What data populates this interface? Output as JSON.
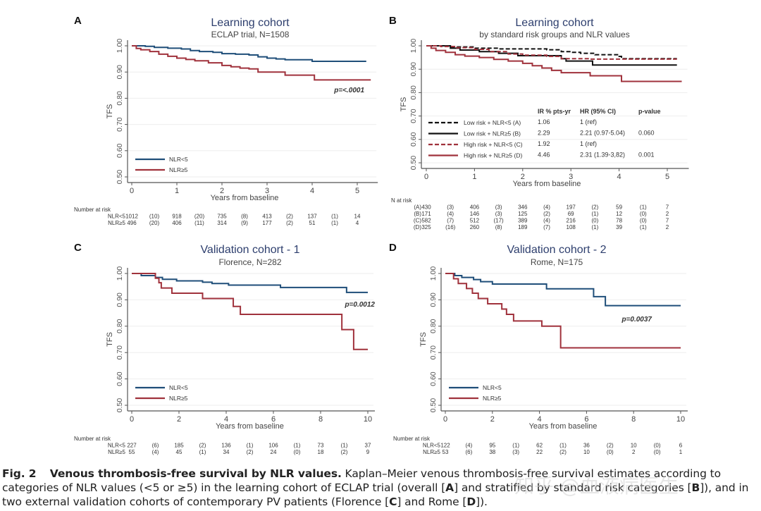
{
  "caption": {
    "fig_label": "Fig. 2",
    "bold_title": "Venous thrombosis-free survival by NLR values.",
    "text_1": " Kaplan–Meier venous thrombosis-free survival estimates according to categories of NLR values (<5 or ≥5) in the learning cohort of ECLAP trial (overall [",
    "ref_a": "A",
    "text_2": "] and stratified by standard risk categories [",
    "ref_b": "B",
    "text_3": "]), and in two external validation cohorts of contemporary PV patients (Florence [",
    "ref_c": "C",
    "text_4": "] and Rome [",
    "ref_d": "D",
    "text_5": "])."
  },
  "watermark": "知乎 @血液病医生",
  "colors": {
    "blue": "#1f4e79",
    "red": "#a0323c",
    "black": "#111111",
    "title": "#2e3f6e",
    "axis": "#555555",
    "grid": "#eeeeee"
  },
  "chart_data": [
    {
      "panel": "A",
      "type": "line",
      "title": "Learning cohort",
      "subtitle": "ECLAP trial, N=1508",
      "xlabel": "Years from baseline",
      "ylabel": "TFS",
      "xlim": [
        0,
        5.3
      ],
      "ylim": [
        0.5,
        1.0
      ],
      "xticks": [
        0,
        1,
        2,
        3,
        4,
        5
      ],
      "yticks": [
        "0.50",
        "0.60",
        "0.70",
        "0.80",
        "0.90",
        "1.00"
      ],
      "grid": true,
      "legend_position": "bottom-left",
      "annotation": "p=<.0001",
      "series": [
        {
          "name": "NLR<5",
          "color": "blue",
          "dash": false,
          "steps": [
            [
              0,
              1.0
            ],
            [
              0.3,
              0.998
            ],
            [
              0.5,
              0.994
            ],
            [
              0.8,
              0.991
            ],
            [
              1.1,
              0.988
            ],
            [
              1.3,
              0.982
            ],
            [
              1.5,
              0.978
            ],
            [
              1.8,
              0.975
            ],
            [
              2.0,
              0.97
            ],
            [
              2.3,
              0.968
            ],
            [
              2.6,
              0.965
            ],
            [
              2.8,
              0.958
            ],
            [
              3.0,
              0.953
            ],
            [
              3.2,
              0.95
            ],
            [
              3.4,
              0.947
            ],
            [
              4.0,
              0.941
            ],
            [
              5.2,
              0.941
            ]
          ]
        },
        {
          "name": "NLR≥5",
          "color": "red",
          "dash": false,
          "steps": [
            [
              0,
              1.0
            ],
            [
              0.1,
              0.99
            ],
            [
              0.2,
              0.985
            ],
            [
              0.4,
              0.978
            ],
            [
              0.6,
              0.968
            ],
            [
              0.8,
              0.96
            ],
            [
              1.0,
              0.953
            ],
            [
              1.2,
              0.948
            ],
            [
              1.4,
              0.943
            ],
            [
              1.7,
              0.935
            ],
            [
              2.0,
              0.925
            ],
            [
              2.2,
              0.92
            ],
            [
              2.4,
              0.915
            ],
            [
              2.6,
              0.912
            ],
            [
              2.8,
              0.9
            ],
            [
              3.4,
              0.888
            ],
            [
              4.05,
              0.87
            ],
            [
              5.3,
              0.87
            ]
          ]
        }
      ],
      "risk_table": {
        "header": "Number at risk",
        "rows": [
          {
            "label": "NLR<5",
            "values": [
              "1012",
              "(10)",
              "918",
              "(20)",
              "735",
              "(8)",
              "413",
              "(2)",
              "137",
              "(1)",
              "14"
            ]
          },
          {
            "label": "NLR≥5",
            "values": [
              "496",
              "(20)",
              "406",
              "(11)",
              "314",
              "(9)",
              "177",
              "(2)",
              "51",
              "(1)",
              "4"
            ]
          }
        ]
      }
    },
    {
      "panel": "B",
      "type": "line",
      "title": "Learning cohort",
      "subtitle": "by standard risk groups and NLR values",
      "xlabel": "Years from baseline",
      "ylabel": "TFS",
      "xlim": [
        0,
        5.3
      ],
      "ylim": [
        0.5,
        1.0
      ],
      "xticks": [
        0,
        1,
        2,
        3,
        4,
        5
      ],
      "yticks": [
        "0.50",
        "0.60",
        "0.70",
        "0.80",
        "0.90",
        "1.00"
      ],
      "grid": true,
      "legend_position": "bottom-left",
      "legend_table": {
        "headers": [
          "IR % pts-yr",
          "HR (95% CI)",
          "p-value"
        ],
        "rows": [
          {
            "label": "Low risk + NLR<5 (A)",
            "ir": "1.06",
            "hr": "1 (ref)",
            "p": ""
          },
          {
            "label": "Low risk + NLR≥5 (B)",
            "ir": "2.29",
            "hr": "2.21 (0.97-5.04)",
            "p": "0.060"
          },
          {
            "label": "High risk + NLR<5 (C)",
            "ir": "1.92",
            "hr": "1 (ref)",
            "p": ""
          },
          {
            "label": "High risk + NLR≥5 (D)",
            "ir": "4.46",
            "hr": "2.31 (1.39-3,82)",
            "p": "0.001"
          }
        ]
      },
      "series": [
        {
          "name": "Low risk + NLR<5 (A)",
          "color": "black",
          "dash": true,
          "steps": [
            [
              0,
              1.0
            ],
            [
              0.5,
              0.995
            ],
            [
              1.0,
              0.99
            ],
            [
              1.5,
              0.987
            ],
            [
              2.5,
              0.983
            ],
            [
              2.8,
              0.975
            ],
            [
              3.0,
              0.972
            ],
            [
              3.2,
              0.968
            ],
            [
              3.5,
              0.962
            ],
            [
              4.0,
              0.955
            ],
            [
              4.05,
              0.945
            ],
            [
              5.2,
              0.945
            ]
          ]
        },
        {
          "name": "Low risk + NLR≥5 (B)",
          "color": "black",
          "dash": false,
          "steps": [
            [
              0,
              1.0
            ],
            [
              0.5,
              0.99
            ],
            [
              0.7,
              0.982
            ],
            [
              1.1,
              0.975
            ],
            [
              1.5,
              0.968
            ],
            [
              1.9,
              0.958
            ],
            [
              2.8,
              0.945
            ],
            [
              2.9,
              0.935
            ],
            [
              3.45,
              0.918
            ],
            [
              5.2,
              0.918
            ]
          ]
        },
        {
          "name": "High risk + NLR<5 (C)",
          "color": "red",
          "dash": true,
          "steps": [
            [
              0,
              1.0
            ],
            [
              0.3,
              0.997
            ],
            [
              0.6,
              0.992
            ],
            [
              1.0,
              0.985
            ],
            [
              1.3,
              0.975
            ],
            [
              1.7,
              0.965
            ],
            [
              2.0,
              0.96
            ],
            [
              2.5,
              0.955
            ],
            [
              2.8,
              0.945
            ],
            [
              3.4,
              0.943
            ],
            [
              5.2,
              0.943
            ]
          ]
        },
        {
          "name": "High risk + NLR≥5 (D)",
          "color": "red",
          "dash": false,
          "steps": [
            [
              0,
              1.0
            ],
            [
              0.1,
              0.99
            ],
            [
              0.2,
              0.98
            ],
            [
              0.4,
              0.972
            ],
            [
              0.6,
              0.962
            ],
            [
              0.8,
              0.956
            ],
            [
              1.1,
              0.95
            ],
            [
              1.4,
              0.942
            ],
            [
              1.7,
              0.935
            ],
            [
              2.0,
              0.925
            ],
            [
              2.2,
              0.915
            ],
            [
              2.4,
              0.905
            ],
            [
              2.6,
              0.895
            ],
            [
              2.8,
              0.885
            ],
            [
              3.4,
              0.872
            ],
            [
              4.05,
              0.848
            ],
            [
              5.3,
              0.848
            ]
          ]
        }
      ],
      "risk_table": {
        "header": "N at risk",
        "rows": [
          {
            "label": "(A)",
            "values": [
              "430",
              "(3)",
              "406",
              "(3)",
              "346",
              "(4)",
              "197",
              "(2)",
              "59",
              "(1)",
              "7"
            ]
          },
          {
            "label": "(B)",
            "values": [
              "171",
              "(4)",
              "146",
              "(3)",
              "125",
              "(2)",
              "69",
              "(1)",
              "12",
              "(0)",
              "2"
            ]
          },
          {
            "label": "(C)",
            "values": [
              "582",
              "(7)",
              "512",
              "(17)",
              "389",
              "(4)",
              "216",
              "(0)",
              "78",
              "(0)",
              "7"
            ]
          },
          {
            "label": "(D)",
            "values": [
              "325",
              "(16)",
              "260",
              "(8)",
              "189",
              "(7)",
              "108",
              "(1)",
              "39",
              "(1)",
              "2"
            ]
          }
        ]
      }
    },
    {
      "panel": "C",
      "type": "line",
      "title": "Validation cohort - 1",
      "subtitle": "Florence, N=282",
      "xlabel": "Years from baseline",
      "ylabel": "TFS",
      "xlim": [
        0,
        10
      ],
      "ylim": [
        0.5,
        1.0
      ],
      "xticks": [
        0,
        2,
        4,
        6,
        8,
        10
      ],
      "yticks": [
        "0.50",
        "0.60",
        "0.70",
        "0.80",
        "0.90",
        "1.00"
      ],
      "grid": true,
      "legend_position": "bottom-left",
      "annotation": "p=0.0012",
      "series": [
        {
          "name": "NLR<5",
          "color": "blue",
          "dash": false,
          "steps": [
            [
              0,
              1.0
            ],
            [
              0.4,
              0.992
            ],
            [
              1.0,
              0.985
            ],
            [
              1.3,
              0.978
            ],
            [
              1.9,
              0.972
            ],
            [
              3.0,
              0.967
            ],
            [
              3.4,
              0.962
            ],
            [
              4.1,
              0.956
            ],
            [
              6.3,
              0.947
            ],
            [
              9.1,
              0.928
            ],
            [
              10,
              0.928
            ]
          ]
        },
        {
          "name": "NLR≥5",
          "color": "red",
          "dash": false,
          "steps": [
            [
              0,
              1.0
            ],
            [
              1.0,
              0.982
            ],
            [
              1.15,
              0.965
            ],
            [
              1.25,
              0.945
            ],
            [
              1.7,
              0.925
            ],
            [
              3.0,
              0.905
            ],
            [
              4.3,
              0.875
            ],
            [
              4.6,
              0.845
            ],
            [
              8.9,
              0.787
            ],
            [
              9.4,
              0.712
            ],
            [
              10,
              0.712
            ]
          ]
        }
      ],
      "risk_table": {
        "header": "Number at risk",
        "rows": [
          {
            "label": "NLR<5",
            "values": [
              "227",
              "(6)",
              "185",
              "(2)",
              "136",
              "(1)",
              "106",
              "(1)",
              "73",
              "(1)",
              "37"
            ]
          },
          {
            "label": "NLR≥5",
            "values": [
              "55",
              "(4)",
              "45",
              "(1)",
              "34",
              "(2)",
              "24",
              "(0)",
              "18",
              "(2)",
              "9"
            ]
          }
        ]
      }
    },
    {
      "panel": "D",
      "type": "line",
      "title": "Validation cohort - 2",
      "subtitle": "Rome, N=175",
      "xlabel": "Years from baseline",
      "ylabel": "TFS",
      "xlim": [
        0,
        10
      ],
      "ylim": [
        0.5,
        1.0
      ],
      "xticks": [
        0,
        2,
        4,
        6,
        8,
        10
      ],
      "yticks": [
        "0.50",
        "0.60",
        "0.70",
        "0.80",
        "0.90",
        "1.00"
      ],
      "grid": true,
      "legend_position": "bottom-left",
      "annotation": "p=0.0037",
      "series": [
        {
          "name": "NLR<5",
          "color": "blue",
          "dash": false,
          "steps": [
            [
              0,
              1.0
            ],
            [
              0.4,
              0.992
            ],
            [
              0.7,
              0.985
            ],
            [
              1.2,
              0.977
            ],
            [
              1.5,
              0.969
            ],
            [
              2.0,
              0.96
            ],
            [
              4.3,
              0.942
            ],
            [
              6.3,
              0.912
            ],
            [
              6.8,
              0.878
            ],
            [
              10,
              0.878
            ]
          ]
        },
        {
          "name": "NLR≥5",
          "color": "red",
          "dash": false,
          "steps": [
            [
              0,
              1.0
            ],
            [
              0.35,
              0.98
            ],
            [
              0.55,
              0.962
            ],
            [
              0.9,
              0.943
            ],
            [
              1.15,
              0.925
            ],
            [
              1.4,
              0.905
            ],
            [
              1.8,
              0.885
            ],
            [
              2.4,
              0.865
            ],
            [
              2.6,
              0.845
            ],
            [
              2.9,
              0.82
            ],
            [
              4.1,
              0.8
            ],
            [
              4.9,
              0.718
            ],
            [
              10,
              0.718
            ]
          ]
        }
      ],
      "risk_table": {
        "header": "Number at risk",
        "rows": [
          {
            "label": "NLR<5",
            "values": [
              "122",
              "(4)",
              "95",
              "(1)",
              "62",
              "(1)",
              "36",
              "(2)",
              "10",
              "(0)",
              "6"
            ]
          },
          {
            "label": "NLR≥5",
            "values": [
              "53",
              "(6)",
              "38",
              "(3)",
              "22",
              "(2)",
              "10",
              "(0)",
              "2",
              "(0)",
              "1"
            ]
          }
        ]
      }
    }
  ]
}
